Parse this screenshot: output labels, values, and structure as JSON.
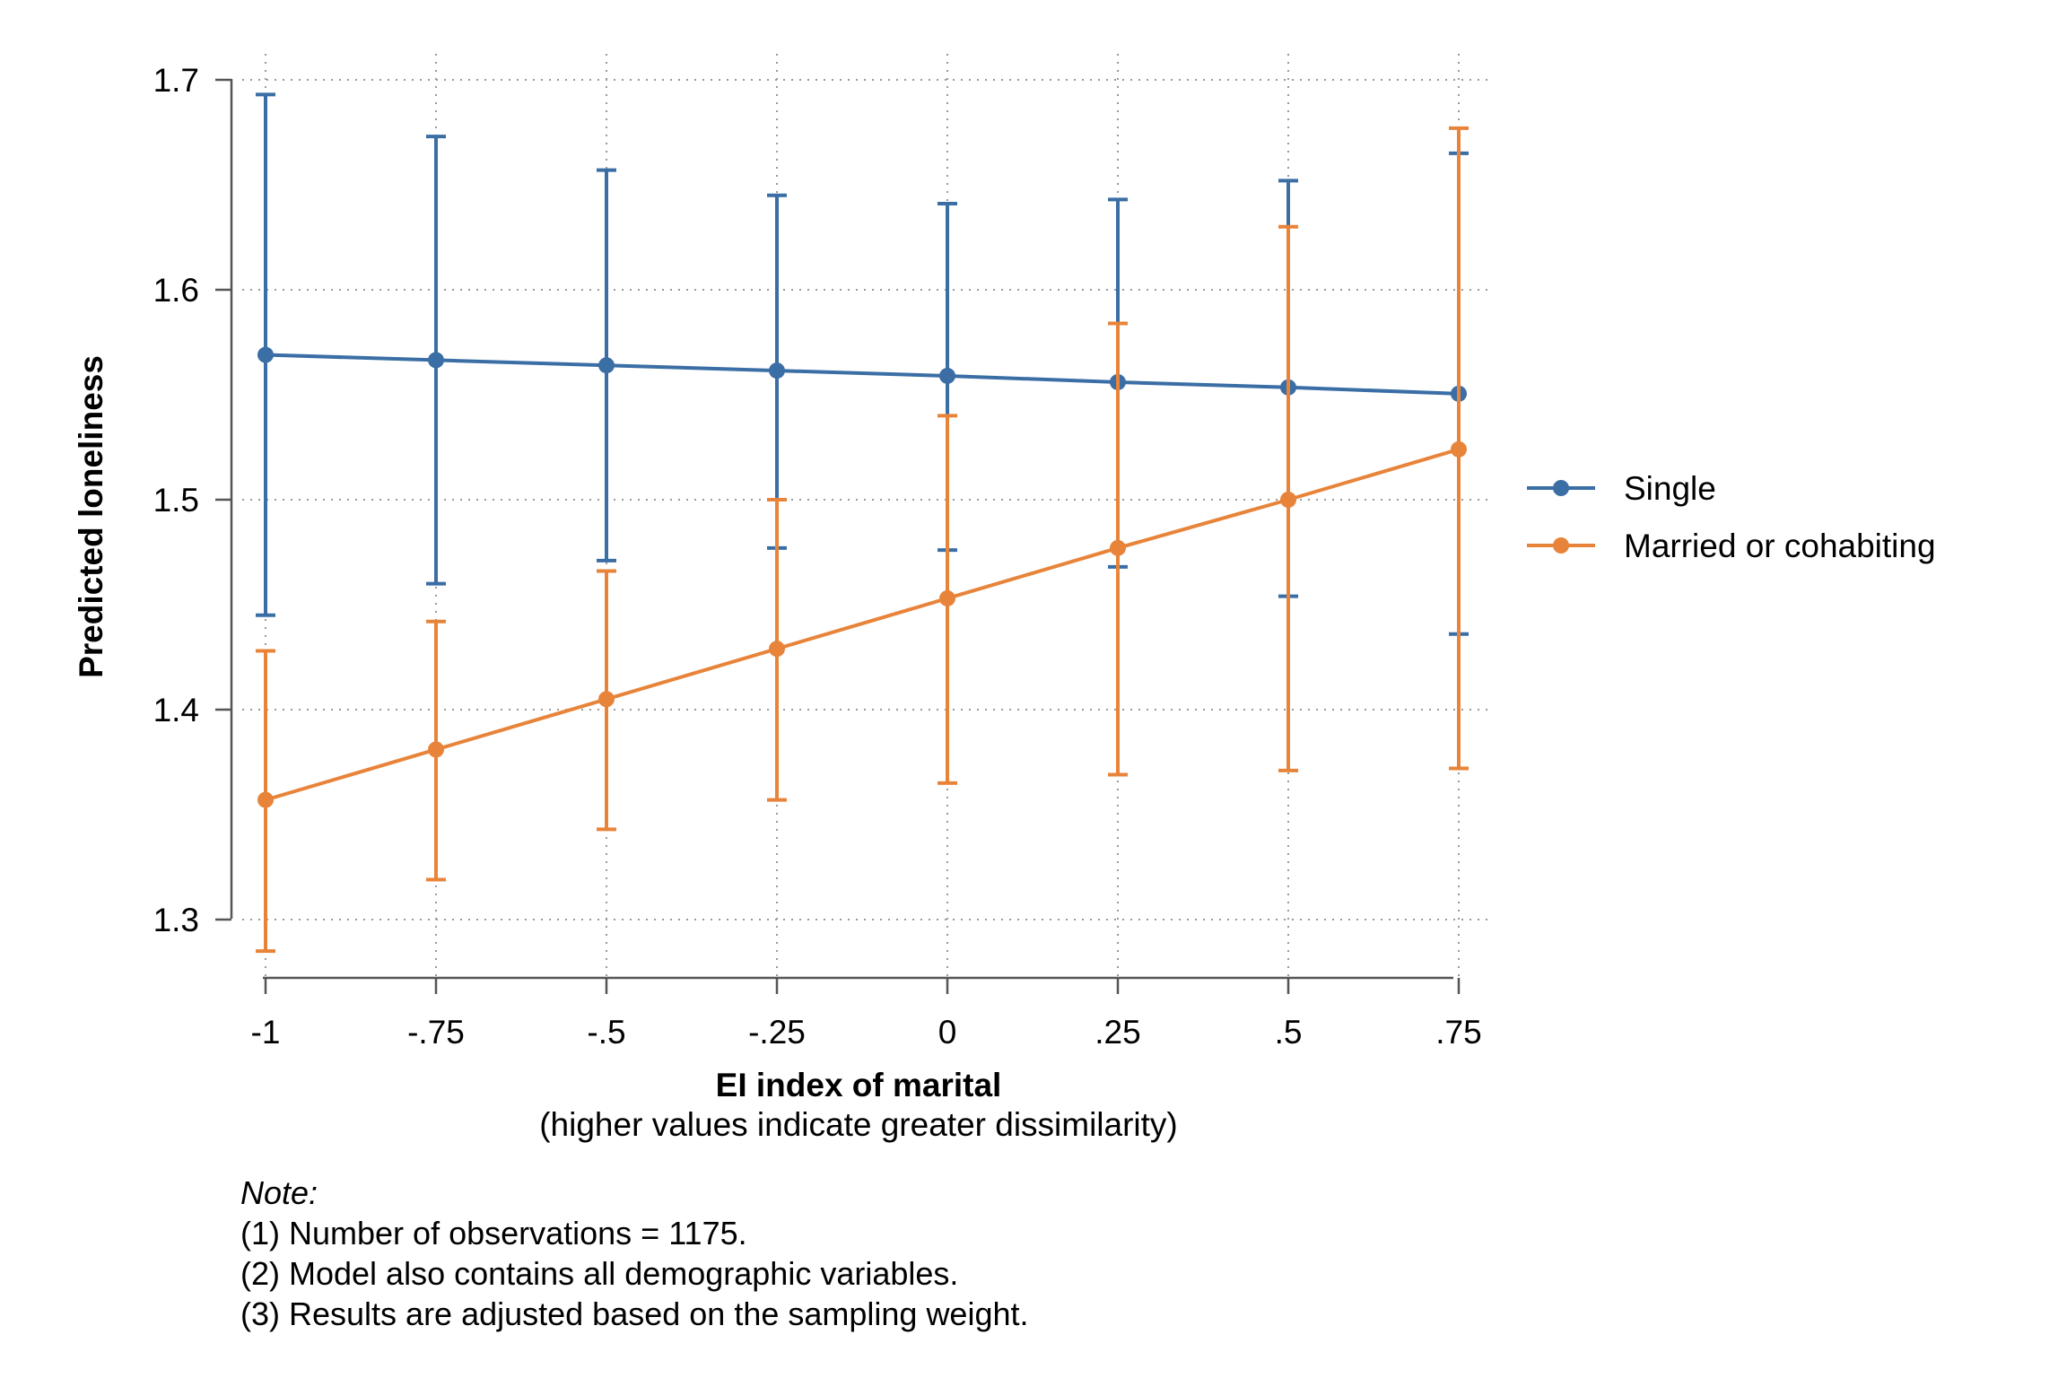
{
  "colors": {
    "single": "#3a6ea5",
    "married": "#e8843a",
    "axis": "#555555",
    "grid": "#999999"
  },
  "chart_data": {
    "type": "line",
    "ylabel": "Predicted loneliness",
    "xlabel": "EI index of marital",
    "xsublabel": "(higher values indicate greater dissimilarity)",
    "x": [
      -1,
      -0.75,
      -0.5,
      -0.25,
      0,
      0.25,
      0.5,
      0.75
    ],
    "x_tick_labels": [
      "-1",
      "-.75",
      "-.5",
      "-.25",
      "0",
      ".25",
      ".5",
      ".75"
    ],
    "y_ticks": [
      1.3,
      1.4,
      1.5,
      1.6,
      1.7
    ],
    "y_tick_labels": [
      "1.3",
      "1.4",
      "1.5",
      "1.6",
      "1.7"
    ],
    "xlim": [
      -1,
      0.75
    ],
    "ylim": [
      1.3,
      1.7
    ],
    "grid": true,
    "legend_position": "right",
    "series": [
      {
        "name": "Single",
        "values": [
          1.569,
          1.5665,
          1.564,
          1.5615,
          1.559,
          1.556,
          1.5535,
          1.5505
        ],
        "ci_low": [
          1.445,
          1.46,
          1.471,
          1.477,
          1.476,
          1.468,
          1.454,
          1.436
        ],
        "ci_high": [
          1.693,
          1.673,
          1.657,
          1.645,
          1.641,
          1.643,
          1.652,
          1.665
        ]
      },
      {
        "name": "Married or cohabiting",
        "values": [
          1.357,
          1.381,
          1.405,
          1.429,
          1.453,
          1.477,
          1.5,
          1.524
        ],
        "ci_low": [
          1.285,
          1.319,
          1.343,
          1.357,
          1.365,
          1.369,
          1.371,
          1.372
        ],
        "ci_high": [
          1.428,
          1.442,
          1.466,
          1.5,
          1.54,
          1.584,
          1.63,
          1.677
        ]
      }
    ]
  },
  "note": {
    "title": "Note:",
    "lines": [
      "(1) Number of observations = 1175.",
      "(2) Model also contains all demographic variables.",
      "(3) Results are adjusted based on the sampling weight."
    ]
  }
}
